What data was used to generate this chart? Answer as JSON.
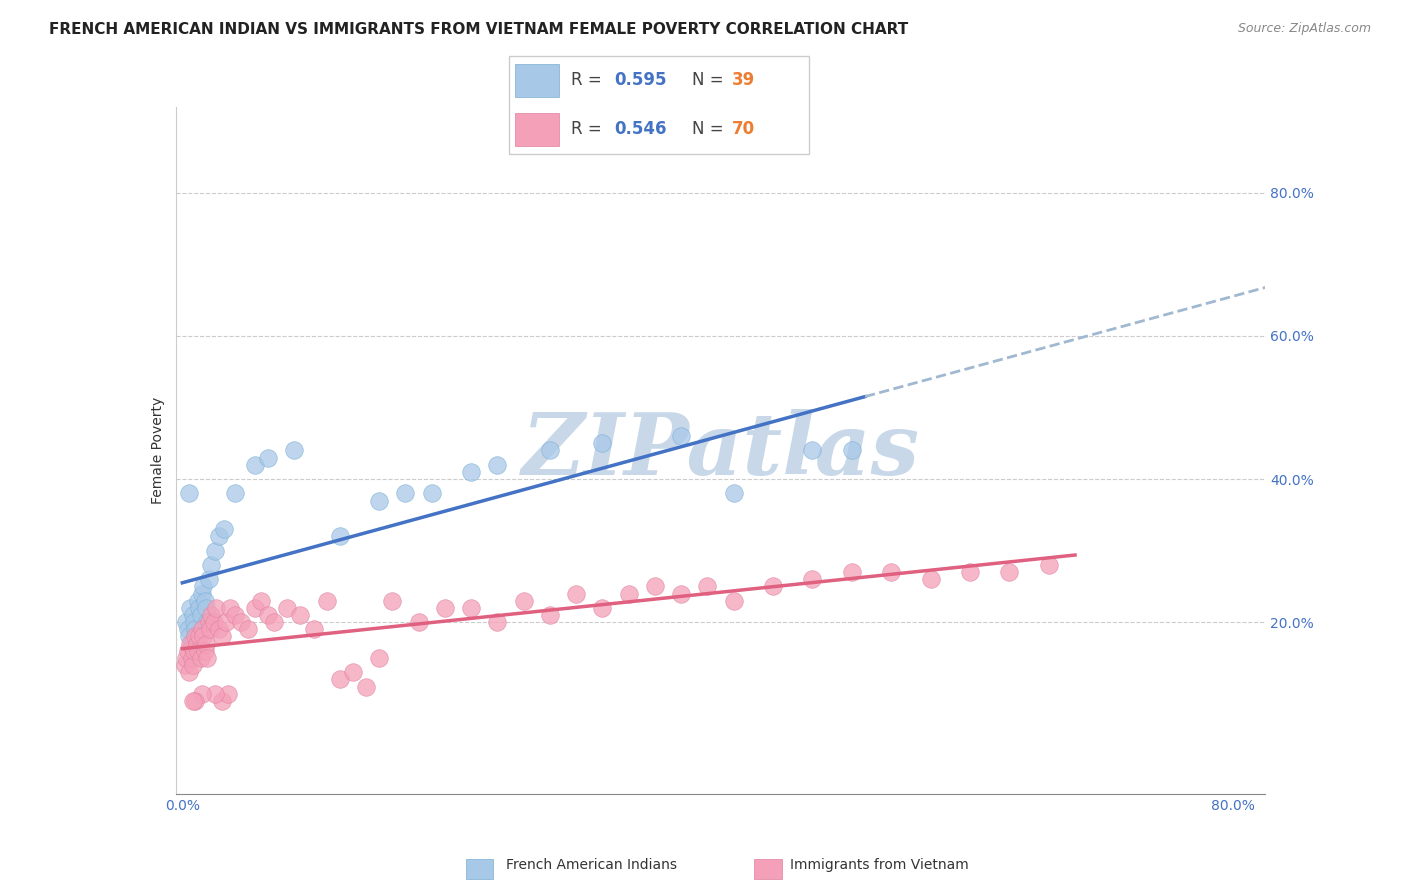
{
  "title": "FRENCH AMERICAN INDIAN VS IMMIGRANTS FROM VIETNAM FEMALE POVERTY CORRELATION CHART",
  "source": "Source: ZipAtlas.com",
  "ylabel": "Female Poverty",
  "xlim": [
    0.0,
    0.8
  ],
  "ylim": [
    0.0,
    0.9
  ],
  "grid_color": "#cccccc",
  "background_color": "#ffffff",
  "series1_label": "French American Indians",
  "series1_color": "#a8c8e8",
  "series1_R": 0.595,
  "series1_N": 39,
  "series2_label": "Immigrants from Vietnam",
  "series2_color": "#f4a0b8",
  "series2_R": 0.546,
  "series2_N": 70,
  "line1_color": "#4472c4",
  "line1_dash_color": "#a0b8d0",
  "line2_color": "#e06080",
  "legend_R_color": "#4472c4",
  "legend_N_color": "#ed7d31",
  "watermark": "ZIPatlas",
  "watermark_color": "#c8d8e8",
  "series1_x": [
    0.003,
    0.004,
    0.005,
    0.006,
    0.007,
    0.008,
    0.009,
    0.01,
    0.011,
    0.012,
    0.013,
    0.014,
    0.015,
    0.016,
    0.017,
    0.018,
    0.019,
    0.02,
    0.022,
    0.025,
    0.028,
    0.032,
    0.04,
    0.055,
    0.065,
    0.085,
    0.12,
    0.15,
    0.17,
    0.19,
    0.22,
    0.24,
    0.28,
    0.32,
    0.38,
    0.42,
    0.48,
    0.51,
    0.005
  ],
  "series1_y": [
    0.2,
    0.19,
    0.18,
    0.22,
    0.17,
    0.21,
    0.2,
    0.19,
    0.18,
    0.23,
    0.22,
    0.21,
    0.24,
    0.25,
    0.23,
    0.22,
    0.2,
    0.26,
    0.28,
    0.3,
    0.32,
    0.33,
    0.38,
    0.42,
    0.43,
    0.44,
    0.32,
    0.37,
    0.38,
    0.38,
    0.41,
    0.42,
    0.44,
    0.45,
    0.46,
    0.38,
    0.44,
    0.44,
    0.38
  ],
  "series2_x": [
    0.002,
    0.003,
    0.004,
    0.005,
    0.006,
    0.007,
    0.008,
    0.009,
    0.01,
    0.011,
    0.012,
    0.013,
    0.014,
    0.015,
    0.016,
    0.017,
    0.018,
    0.019,
    0.02,
    0.021,
    0.022,
    0.024,
    0.026,
    0.028,
    0.03,
    0.033,
    0.036,
    0.04,
    0.045,
    0.05,
    0.055,
    0.06,
    0.065,
    0.07,
    0.08,
    0.09,
    0.1,
    0.11,
    0.12,
    0.13,
    0.14,
    0.15,
    0.16,
    0.18,
    0.2,
    0.22,
    0.24,
    0.26,
    0.28,
    0.3,
    0.32,
    0.34,
    0.36,
    0.38,
    0.4,
    0.42,
    0.45,
    0.48,
    0.51,
    0.54,
    0.57,
    0.6,
    0.63,
    0.66,
    0.03,
    0.035,
    0.025,
    0.015,
    0.01,
    0.008
  ],
  "series2_y": [
    0.14,
    0.15,
    0.16,
    0.13,
    0.17,
    0.15,
    0.14,
    0.16,
    0.18,
    0.17,
    0.16,
    0.18,
    0.15,
    0.19,
    0.18,
    0.16,
    0.17,
    0.15,
    0.2,
    0.19,
    0.21,
    0.2,
    0.22,
    0.19,
    0.18,
    0.2,
    0.22,
    0.21,
    0.2,
    0.19,
    0.22,
    0.23,
    0.21,
    0.2,
    0.22,
    0.21,
    0.19,
    0.23,
    0.12,
    0.13,
    0.11,
    0.15,
    0.23,
    0.2,
    0.22,
    0.22,
    0.2,
    0.23,
    0.21,
    0.24,
    0.22,
    0.24,
    0.25,
    0.24,
    0.25,
    0.23,
    0.25,
    0.26,
    0.27,
    0.27,
    0.26,
    0.27,
    0.27,
    0.28,
    0.09,
    0.1,
    0.1,
    0.1,
    0.09,
    0.09
  ],
  "title_fontsize": 11,
  "axis_label_fontsize": 10,
  "tick_fontsize": 10,
  "source_fontsize": 9
}
